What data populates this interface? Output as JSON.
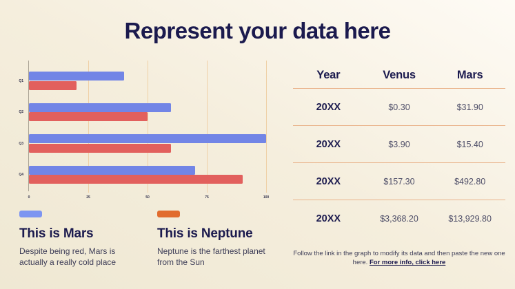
{
  "header": {
    "title": "Represent your data here"
  },
  "chart_data": {
    "type": "bar",
    "orientation": "horizontal",
    "categories": [
      "Q1",
      "Q2",
      "Q3",
      "Q4"
    ],
    "series": [
      {
        "name": "This is Mars",
        "color": "#7285e6",
        "values": [
          40,
          60,
          100,
          70
        ]
      },
      {
        "name": "This is Neptune",
        "color": "#e2605d",
        "values": [
          20,
          50,
          60,
          90
        ]
      }
    ],
    "xlim": [
      0,
      100
    ],
    "xticks": [
      0,
      25,
      50,
      75,
      100
    ],
    "grid": true,
    "legend_position": "below"
  },
  "legend": {
    "items": [
      {
        "swatch_color": "#7d95f1",
        "title": "This is Mars",
        "description": "Despite being red, Mars is actually a really cold place"
      },
      {
        "swatch_color": "#e16c2e",
        "title": "This is Neptune",
        "description": "Neptune is the farthest planet from the Sun"
      }
    ]
  },
  "table": {
    "columns": [
      "Year",
      "Venus",
      "Mars"
    ],
    "rows": [
      [
        "20XX",
        "$0.30",
        "$31.90"
      ],
      [
        "20XX",
        "$3.90",
        "$15.40"
      ],
      [
        "20XX",
        "$157.30",
        "$492.80"
      ],
      [
        "20XX",
        "$3,368.20",
        "$13,929.80"
      ]
    ],
    "divider_color": "#e9b289"
  },
  "footer": {
    "text": "Follow the link in the graph to modify its data and then paste the new one here.",
    "link_label": "For more info, click here"
  },
  "colors": {
    "background_start": "#efe8d3",
    "background_end": "#fefbf5",
    "title_text": "#1b1a4e",
    "gridline": "#efd0a6",
    "axis": "#a9a294",
    "body_text": "#3e3e58"
  }
}
